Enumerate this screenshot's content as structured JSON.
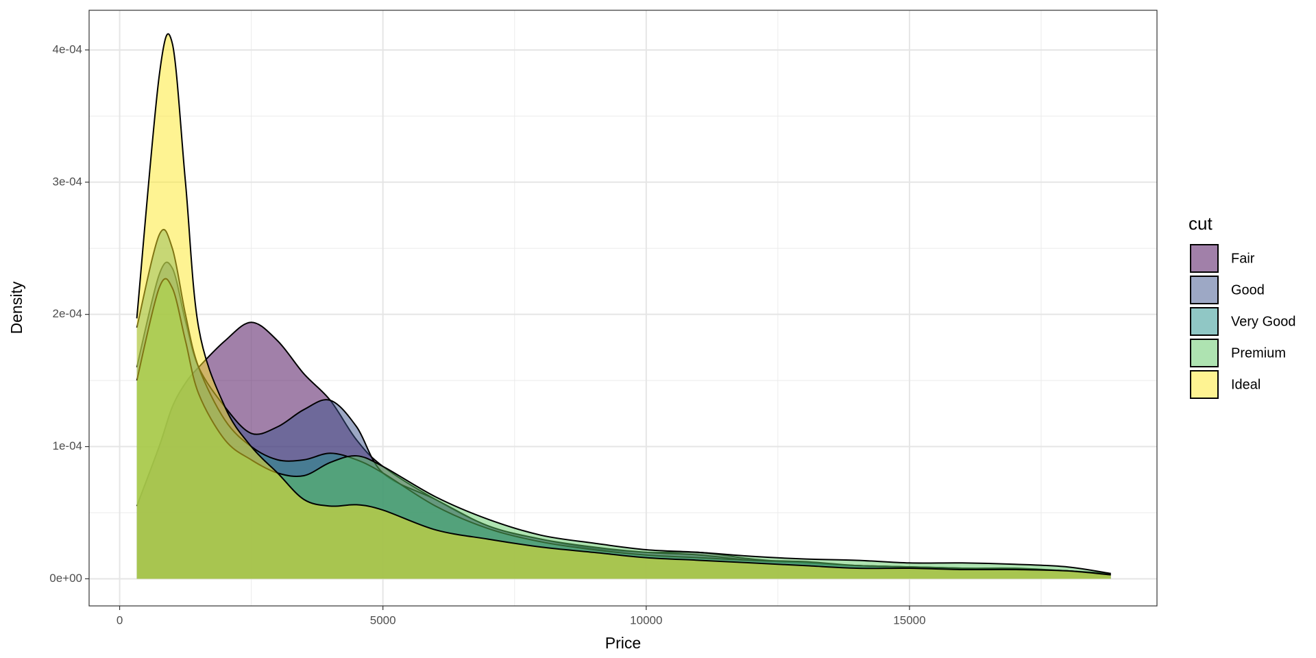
{
  "chart_data": {
    "type": "density",
    "x_label": "Price",
    "y_label": "Density",
    "legend_title": "cut",
    "x": [
      326,
      750,
      1000,
      1250,
      1500,
      2000,
      2500,
      3000,
      3500,
      4000,
      4500,
      5000,
      6000,
      7000,
      8000,
      9000,
      10000,
      11000,
      12000,
      13000,
      14000,
      15000,
      16000,
      17000,
      18000,
      18823
    ],
    "series": [
      {
        "name": "Fair",
        "color": "#440154",
        "values": [
          5.5e-05,
          0.0001,
          0.00013,
          0.000148,
          0.00016,
          0.00018,
          0.000194,
          0.00018,
          0.000155,
          0.000135,
          0.000105,
          8.5e-05,
          6e-05,
          4e-05,
          3e-05,
          2.3e-05,
          2e-05,
          2e-05,
          1.5e-05,
          1.2e-05,
          1e-05,
          9e-06,
          8e-06,
          8e-06,
          6e-06,
          4e-06
        ]
      },
      {
        "name": "Good",
        "color": "#3B528B",
        "values": [
          0.00016,
          0.00023,
          0.000235,
          0.000195,
          0.00016,
          0.00013,
          0.00011,
          0.000115,
          0.000128,
          0.000135,
          0.000115,
          8e-05,
          6e-05,
          4e-05,
          3e-05,
          2.4e-05,
          2e-05,
          1.8e-05,
          1.4e-05,
          1.2e-05,
          1e-05,
          9e-06,
          8e-06,
          7e-06,
          6e-06,
          3e-06
        ]
      },
      {
        "name": "Very Good",
        "color": "#21908C",
        "values": [
          0.00019,
          0.00026,
          0.00025,
          0.0002,
          0.00016,
          0.00012,
          0.0001,
          9e-05,
          9e-05,
          9.5e-05,
          9e-05,
          8e-05,
          5.5e-05,
          3.8e-05,
          2.8e-05,
          2.2e-05,
          1.8e-05,
          1.6e-05,
          1.4e-05,
          1.3e-05,
          1e-05,
          9e-06,
          8e-06,
          7e-06,
          6e-06,
          3e-06
        ]
      },
      {
        "name": "Premium",
        "color": "#5DC863",
        "values": [
          0.00015,
          0.00022,
          0.00022,
          0.00018,
          0.00014,
          0.000105,
          9e-05,
          8e-05,
          7.8e-05,
          8.8e-05,
          9.3e-05,
          8.5e-05,
          6.2e-05,
          4.5e-05,
          3.3e-05,
          2.7e-05,
          2.2e-05,
          2e-05,
          1.7e-05,
          1.5e-05,
          1.4e-05,
          1.2e-05,
          1.2e-05,
          1.1e-05,
          9e-06,
          4e-06
        ]
      },
      {
        "name": "Ideal",
        "color": "#FDE725",
        "values": [
          0.000197,
          0.00038,
          0.000405,
          0.0003,
          0.00019,
          0.00013,
          0.0001,
          8e-05,
          6e-05,
          5.5e-05,
          5.6e-05,
          5.2e-05,
          3.7e-05,
          3e-05,
          2.4e-05,
          2e-05,
          1.6e-05,
          1.4e-05,
          1.2e-05,
          1e-05,
          8e-06,
          8e-06,
          7e-06,
          7e-06,
          6e-06,
          3e-06
        ]
      }
    ],
    "alpha": 0.5,
    "xlim": [
      -580,
      19700
    ],
    "xticks": [
      0,
      5000,
      10000,
      15000
    ],
    "ylim": [
      -2.05e-05,
      0.00043
    ],
    "yticks": [
      {
        "value": 0,
        "label": "0e+00"
      },
      {
        "value": 0.0001,
        "label": "1e-04"
      },
      {
        "value": 0.0002,
        "label": "2e-04"
      },
      {
        "value": 0.0003,
        "label": "3e-04"
      },
      {
        "value": 0.0004,
        "label": "4e-04"
      }
    ],
    "grid": true
  }
}
